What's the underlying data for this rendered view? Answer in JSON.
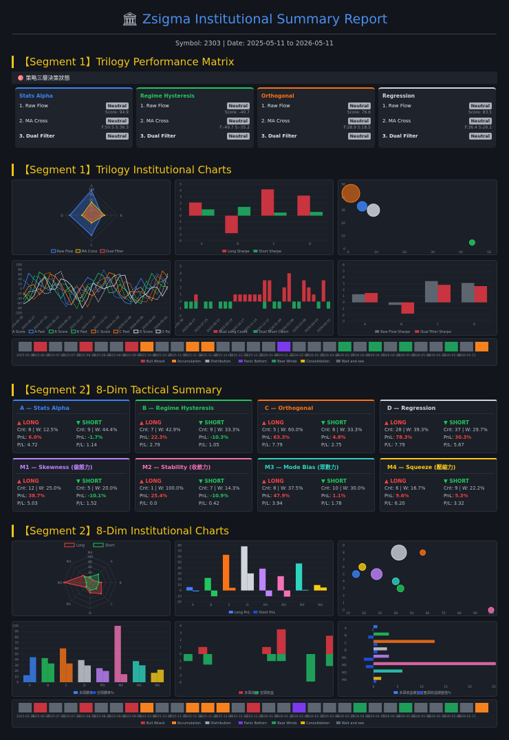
{
  "header": {
    "title": "Zsigma Institutional Summary Report",
    "subtitle": "Symbol: 2303 | Date: 2025-05-11 to 2026-05-11"
  },
  "sections": {
    "s1_matrix": "【Segment 1】Trilogy Performance Matrix",
    "s1_charts": "【Segment 1】Trilogy Institutional Charts",
    "s2_summary": "【Segment 2】8-Dim Tactical Summary",
    "s2_charts": "【Segment 2】8-Dim Institutional Charts"
  },
  "matrix": {
    "heading": "策略三層決策狀態",
    "cards": [
      {
        "name": "Stats Alpha",
        "color": "#3b82f6",
        "r1": "1. Raw Flow",
        "b1": "Neutral",
        "s1": "Score: 94.9",
        "r2": "2. MA Cross",
        "b2": "Neutral",
        "s2": "F:50.5 S:36.3",
        "r3": "3. Dual Filter",
        "b3": "Neutral"
      },
      {
        "name": "Regime Hysteresis",
        "color": "#22c55e",
        "r1": "1. Raw Flow",
        "b1": "Neutral",
        "s1": "Score: -40.7",
        "r2": "2. MA Cross",
        "b2": "Neutral",
        "s2": "F:-49.7 S:-35.2",
        "r3": "3. Dual Filter",
        "b3": "Neutral"
      },
      {
        "name": "Orthogonal",
        "color": "#f97316",
        "r1": "1. Raw Flow",
        "b1": "Neutral",
        "s1": "Score: 76.6",
        "r2": "2. MA Cross",
        "b2": "Neutral",
        "s2": "F:28.9 S:18.5",
        "r3": "3. Dual Filter",
        "b3": "Neutral"
      },
      {
        "name": "Regression",
        "color": "#d1d5db",
        "r1": "1. Raw Flow",
        "b1": "Neutral",
        "s1": "Score: 83.5",
        "r2": "2. MA Cross",
        "b2": "Neutral",
        "s2": "F:36.4 S:26.1",
        "r3": "3. Dual Filter",
        "b3": "Neutral"
      }
    ]
  },
  "tactical": [
    {
      "name": "A — Stats Alpha",
      "color": "#3b82f6",
      "long": {
        "hd": "▲ LONG",
        "cnt": "Cnt: 8 | W: 12.5%",
        "pnl_l": "PnL: ",
        "pnl": "6.0%",
        "pl": "P/L: 4.72"
      },
      "short": {
        "hd": "▼ SHORT",
        "cnt": "Cnt: 9 | W: 44.4%",
        "pnl_l": "PnL: ",
        "pnl": "-1.7%",
        "pl": "P/L: 1.14"
      }
    },
    {
      "name": "B — Regime Hysteresis",
      "color": "#22c55e",
      "long": {
        "hd": "▲ LONG",
        "cnt": "Cnt: 7 | W: 42.9%",
        "pnl_l": "PnL: ",
        "pnl": "22.3%",
        "pl": "P/L: 2.79"
      },
      "short": {
        "hd": "▼ SHORT",
        "cnt": "Cnt: 9 | W: 33.3%",
        "pnl_l": "PnL: ",
        "pnl": "-10.3%",
        "pl": "P/L: 1.05"
      }
    },
    {
      "name": "C — Orthogonal",
      "color": "#f97316",
      "long": {
        "hd": "▲ LONG",
        "cnt": "Cnt: 5 | W: 60.0%",
        "pnl_l": "PnL: ",
        "pnl": "63.3%",
        "pl": "P/L: 7.79"
      },
      "short": {
        "hd": "▼ SHORT",
        "cnt": "Cnt: 6 | W: 33.3%",
        "pnl_l": "PnL: ",
        "pnl": "4.8%",
        "pl": "P/L: 2.75"
      }
    },
    {
      "name": "D — Regression",
      "color": "#d1d5db",
      "long": {
        "hd": "▲ LONG",
        "cnt": "Cnt: 28 | W: 39.3%",
        "pnl_l": "PnL: ",
        "pnl": "78.3%",
        "pl": "P/L: 7.79"
      },
      "short": {
        "hd": "▼ SHORT",
        "cnt": "Cnt: 37 | W: 29.7%",
        "pnl_l": "PnL: ",
        "pnl": "30.3%",
        "pl": "P/L: 5.67"
      }
    },
    {
      "name": "M1 — Skewness (偏態力)",
      "color": "#c084fc",
      "long": {
        "hd": "▲ LONG",
        "cnt": "Cnt: 12 | W: 25.0%",
        "pnl_l": "PnL: ",
        "pnl": "38.7%",
        "pl": "P/L: 5.03"
      },
      "short": {
        "hd": "▼ SHORT",
        "cnt": "Cnt: 5 | W: 20.0%",
        "pnl_l": "PnL: ",
        "pnl": "-10.1%",
        "pl": "P/L: 1.52"
      }
    },
    {
      "name": "M2 — Stability (收斂力)",
      "color": "#f472b6",
      "long": {
        "hd": "▲ LONG",
        "cnt": "Cnt: 1 | W: 100.0%",
        "pnl_l": "PnL: ",
        "pnl": "25.4%",
        "pl": "P/L: 0.0"
      },
      "short": {
        "hd": "▼ SHORT",
        "cnt": "Cnt: 7 | W: 14.3%",
        "pnl_l": "PnL: ",
        "pnl": "-10.9%",
        "pl": "P/L: 0.42"
      }
    },
    {
      "name": "M3 — Mode Bias (眾數力)",
      "color": "#2dd4bf",
      "long": {
        "hd": "▲ LONG",
        "cnt": "Cnt: 8 | W: 37.5%",
        "pnl_l": "PnL: ",
        "pnl": "47.9%",
        "pl": "P/L: 3.94"
      },
      "short": {
        "hd": "▼ SHORT",
        "cnt": "Cnt: 10 | W: 30.0%",
        "pnl_l": "PnL: ",
        "pnl": "1.1%",
        "pl": "P/L: 1.78"
      }
    },
    {
      "name": "M4 — Squeeze (壓縮力)",
      "color": "#facc15",
      "long": {
        "hd": "▲ LONG",
        "cnt": "Cnt: 6 | W: 16.7%",
        "pnl_l": "PnL: ",
        "pnl": "9.6%",
        "pl": "P/L: 6.20"
      },
      "short": {
        "hd": "▼ SHORT",
        "cnt": "Cnt: 9 | W: 22.2%",
        "pnl_l": "PnL: ",
        "pnl": "5.3%",
        "pl": "P/L: 3.32"
      }
    }
  ],
  "colors": {
    "bull": "#c8343f",
    "bear": "#1e9e5a",
    "neutral": "#5d6570",
    "accent": "#f0c419"
  },
  "chart_data": [
    {
      "type": "radar",
      "axes": [
        "A",
        "B",
        "C",
        "D"
      ],
      "series": [
        {
          "name": "Raw Flow",
          "values": [
            94.9,
            40.7,
            76.6,
            83.5
          ]
        },
        {
          "name": "MA Cross",
          "values": [
            50.5,
            49.7,
            28.9,
            36.4
          ]
        },
        {
          "name": "Dual Filter",
          "values": [
            36.3,
            35.2,
            18.5,
            26.1
          ]
        }
      ],
      "legend": "bottom"
    },
    {
      "type": "bar",
      "categories": [
        "A",
        "B",
        "C",
        "D"
      ],
      "series": [
        {
          "name": "Long Sharpe",
          "values": [
            2.1,
            -2.8,
            4.2,
            3.2
          ]
        },
        {
          "name": "Short Sharpe",
          "values": [
            1.0,
            1.4,
            0.5,
            0.6
          ]
        }
      ],
      "ylim": [
        -4,
        5
      ],
      "legend": "bottom"
    },
    {
      "type": "scatter",
      "points": [
        {
          "x": 1,
          "y": 43,
          "r": 13
        },
        {
          "x": 5,
          "y": 33,
          "r": 7
        },
        {
          "x": 9,
          "y": 30,
          "r": 9
        },
        {
          "x": 44,
          "y": 5,
          "r": 4
        }
      ],
      "xlim": [
        0,
        50
      ],
      "ylim": [
        0,
        50
      ]
    },
    {
      "type": "line",
      "series": [
        {
          "name": "A Score"
        },
        {
          "name": "A Fast"
        },
        {
          "name": "B Score"
        },
        {
          "name": "B Fast"
        },
        {
          "name": "C Score"
        },
        {
          "name": "C Fast"
        },
        {
          "name": "D Score"
        },
        {
          "name": "D Fast"
        }
      ],
      "ylim": [
        -100,
        100
      ],
      "legend": "bottom"
    },
    {
      "type": "bar",
      "series": [
        {
          "name": "Dual Long Count"
        },
        {
          "name": "Dual Short Count"
        }
      ],
      "ylim": [
        -2,
        5
      ],
      "legend": "bottom"
    },
    {
      "type": "bar",
      "categories": [
        "A",
        "B",
        "C",
        "D"
      ],
      "series": [
        {
          "name": "Raw Flow Sharpe",
          "values": [
            1.3,
            -0.4,
            3.4,
            3.1
          ]
        },
        {
          "name": "Dual Filter Sharpe",
          "values": [
            1.5,
            -1.8,
            2.8,
            2.6
          ]
        }
      ],
      "ylim": [
        -3,
        6
      ],
      "legend": "bottom"
    },
    {
      "type": "heatmap",
      "legend": [
        "Bull Attack",
        "Accumulation",
        "Distribution",
        "Panic Bottom",
        "Bear Winds",
        "Consolidation",
        "Wait and see"
      ]
    },
    {
      "type": "radar",
      "axes": [
        "M4",
        "A",
        "B",
        "C",
        "D",
        "M1",
        "M2",
        "M3"
      ],
      "series": [
        {
          "name": "Long",
          "values": [
            16.7,
            12.5,
            42.9,
            60.0,
            39.3,
            25.0,
            100.0,
            37.5
          ]
        },
        {
          "name": "Short",
          "values": [
            22.2,
            44.4,
            33.3,
            33.3,
            29.7,
            20.0,
            14.3,
            30.0
          ]
        }
      ],
      "ylim": [
        0,
        100
      ],
      "legend": "top"
    },
    {
      "type": "bar",
      "categories": [
        "A",
        "B",
        "C",
        "D",
        "M1",
        "M2",
        "M3",
        "M4"
      ],
      "series": [
        {
          "name": "Long PnL",
          "values": [
            6.0,
            22.3,
            63.3,
            78.3,
            38.7,
            25.4,
            47.9,
            9.6
          ]
        },
        {
          "name": "Short PnL",
          "values": [
            -1.7,
            -10.3,
            4.8,
            30.3,
            -10.1,
            -10.9,
            1.1,
            5.3
          ]
        }
      ],
      "ylim": [
        -20,
        80
      ],
      "legend": "bottom"
    },
    {
      "type": "scatter",
      "points": [
        {
          "x": 15,
          "y": 5,
          "r": 5
        },
        {
          "x": 19,
          "y": 6,
          "r": 5
        },
        {
          "x": 28,
          "y": 5,
          "r": 8
        },
        {
          "x": 40,
          "y": 4,
          "r": 5
        },
        {
          "x": 42,
          "y": 8,
          "r": 11
        },
        {
          "x": 43,
          "y": 3,
          "r": 5
        },
        {
          "x": 57,
          "y": 8,
          "r": 4
        },
        {
          "x": 100,
          "y": 0,
          "r": 4
        }
      ],
      "xlim": [
        10,
        100
      ],
      "ylim": [
        0,
        9
      ]
    },
    {
      "type": "bar",
      "categories": [
        "A",
        "B",
        "C",
        "D",
        "M1",
        "M2",
        "M3",
        "M4"
      ],
      "series": [
        {
          "name": "多頭勝率%",
          "values": [
            12.5,
            42.9,
            60.0,
            39.3,
            25.0,
            100.0,
            37.5,
            16.7
          ]
        },
        {
          "name": "空頭勝率%",
          "values": [
            44.4,
            33.3,
            33.3,
            29.7,
            20.0,
            14.3,
            30.0,
            22.2
          ]
        }
      ],
      "ylim": [
        0,
        100
      ],
      "legend": "bottom"
    },
    {
      "type": "bar",
      "series": [
        {
          "name": "多頭收益"
        },
        {
          "name": "空頭收益"
        }
      ],
      "ylim": [
        -4,
        4
      ],
      "legend": "bottom"
    },
    {
      "type": "bar",
      "categories": [
        "A",
        "B",
        "C",
        "D",
        "M1",
        "M2",
        "M3",
        "M4"
      ],
      "series": [
        {
          "name": "多頭收益期望值%",
          "values": [
            0.8,
            3.2,
            12.7,
            2.8,
            3.2,
            25.4,
            6.0,
            1.6
          ]
        },
        {
          "name": "空頭收益期望值%",
          "values": [
            -0.2,
            -1.1,
            0.8,
            0.8,
            -2.0,
            -1.6,
            0.1,
            0.6
          ]
        }
      ],
      "legend": "bottom"
    },
    {
      "type": "heatmap",
      "legend": [
        "Bull Attack",
        "Accumulation",
        "Distribution",
        "Panic Bottom",
        "Bear Winds",
        "Consolidation",
        "Wait and see"
      ]
    }
  ],
  "axes": {
    "dates_top": [
      "2025-05-30",
      "2025-06-27",
      "2025-07-25",
      "2025-08-22",
      "2025-09-19",
      "2025-10-17",
      "2025-11-14",
      "2025-12-12",
      "2026-01-09",
      "2026-02-06",
      "2026-03-06",
      "2026-04-03",
      "2026-05-01"
    ]
  }
}
